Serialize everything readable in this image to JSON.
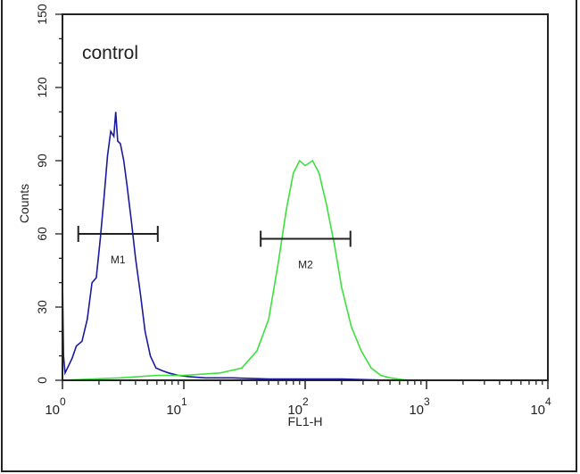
{
  "chart_data": {
    "type": "line",
    "annotation": "control",
    "xlabel": "FL1-H",
    "ylabel": "Counts",
    "xscale": "log",
    "xlim": [
      1,
      10000
    ],
    "ylim": [
      0,
      150
    ],
    "grid": false,
    "x_ticks": [
      {
        "base": "10",
        "exp": "0",
        "value": 1
      },
      {
        "base": "10",
        "exp": "1",
        "value": 10
      },
      {
        "base": "10",
        "exp": "2",
        "value": 100
      },
      {
        "base": "10",
        "exp": "3",
        "value": 1000
      },
      {
        "base": "10",
        "exp": "4",
        "value": 10000
      }
    ],
    "y_ticks": [
      "0",
      "30",
      "60",
      "90",
      "120",
      "150"
    ],
    "series": [
      {
        "color": "#1a1aa0",
        "x": [
          1,
          1.02,
          1.05,
          1.1,
          1.2,
          1.3,
          1.45,
          1.6,
          1.75,
          1.9,
          2.05,
          2.2,
          2.35,
          2.5,
          2.65,
          2.75,
          2.85,
          3.0,
          3.2,
          3.4,
          3.7,
          4.0,
          4.4,
          4.8,
          5.3,
          5.9,
          6.6,
          7.5,
          9,
          11,
          15,
          25,
          50,
          100,
          200,
          500,
          10000
        ],
        "y": [
          42,
          10,
          3,
          5,
          9,
          14,
          16,
          25,
          40,
          42,
          58,
          75,
          92,
          102,
          100,
          110,
          98,
          97,
          90,
          80,
          65,
          50,
          35,
          20,
          10,
          5,
          4,
          3,
          2,
          1.5,
          1,
          1,
          0.5,
          0.5,
          0.5,
          0,
          0
        ]
      },
      {
        "color": "#3de03d",
        "x": [
          1,
          3,
          6,
          10,
          20,
          30,
          40,
          50,
          60,
          70,
          80,
          90,
          100,
          115,
          130,
          150,
          175,
          200,
          240,
          290,
          350,
          420,
          500,
          700,
          10000
        ],
        "y": [
          0,
          1,
          2,
          2,
          3,
          5,
          12,
          25,
          48,
          70,
          85,
          90,
          88,
          90,
          85,
          72,
          55,
          38,
          22,
          12,
          5,
          2,
          1,
          0,
          0
        ]
      }
    ],
    "markers": [
      {
        "label": "M1",
        "x_start": 1.35,
        "x_end": 6.1,
        "y": 60
      },
      {
        "label": "M2",
        "x_start": 43,
        "x_end": 236,
        "y": 58
      }
    ]
  }
}
